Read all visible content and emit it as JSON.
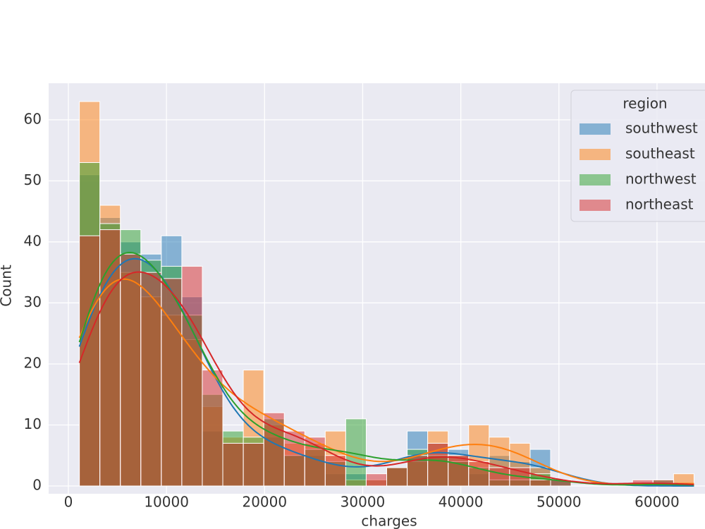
{
  "chart_data": {
    "type": "histogram",
    "xlabel": "charges",
    "ylabel": "Count",
    "bins": [
      1121.9,
      3210.2,
      5298.4,
      7386.7,
      9475.0,
      11563.3,
      13651.6,
      15739.9,
      17828.2,
      19916.4,
      22004.7,
      24093.0,
      26181.3,
      28269.6,
      30357.9,
      32446.1,
      34534.4,
      36622.7,
      38711.0,
      40799.3,
      42887.6,
      44975.9,
      47064.1,
      49152.4,
      51240.7,
      53329.0,
      55417.3,
      57505.6,
      59593.8,
      61682.1,
      63770.4
    ],
    "series": [
      {
        "name": "southwest",
        "color": "#1f77b4",
        "values": [
          51,
          44,
          40,
          38,
          41,
          31,
          9,
          7,
          7,
          8,
          5,
          5,
          2,
          2,
          1,
          3,
          9,
          7,
          6,
          2,
          5,
          4,
          6,
          1,
          0,
          0,
          0,
          0,
          0,
          0
        ]
      },
      {
        "name": "southeast",
        "color": "#ff7f0e",
        "values": [
          63,
          46,
          35,
          31,
          28,
          24,
          13,
          8,
          19,
          10,
          7,
          7,
          9,
          1,
          1,
          3,
          4,
          9,
          5,
          10,
          8,
          7,
          3,
          0,
          0,
          0,
          0,
          0,
          0,
          2
        ]
      },
      {
        "name": "northwest",
        "color": "#2ca02c",
        "values": [
          53,
          43,
          42,
          37,
          36,
          28,
          15,
          9,
          8,
          11,
          5,
          6,
          4,
          11,
          0,
          3,
          6,
          5,
          4,
          3,
          1,
          1,
          2,
          1,
          0,
          0,
          0,
          0,
          1,
          0
        ]
      },
      {
        "name": "northeast",
        "color": "#d62728",
        "values": [
          41,
          42,
          38,
          35,
          34,
          36,
          19,
          7,
          7,
          12,
          9,
          8,
          5,
          0,
          2,
          3,
          5,
          7,
          5,
          4,
          3,
          3,
          1,
          1,
          0,
          0,
          0,
          1,
          1,
          0
        ]
      }
    ],
    "legend_title": "region",
    "legend": "upper right",
    "kde": true,
    "grid": true,
    "xlim": [
      -2011,
      66903
    ],
    "xticks": [
      0,
      10000,
      20000,
      30000,
      40000,
      50000,
      60000
    ],
    "ylim": [
      0,
      66
    ],
    "yticks": [
      0,
      10,
      20,
      30,
      40,
      50,
      60
    ]
  }
}
